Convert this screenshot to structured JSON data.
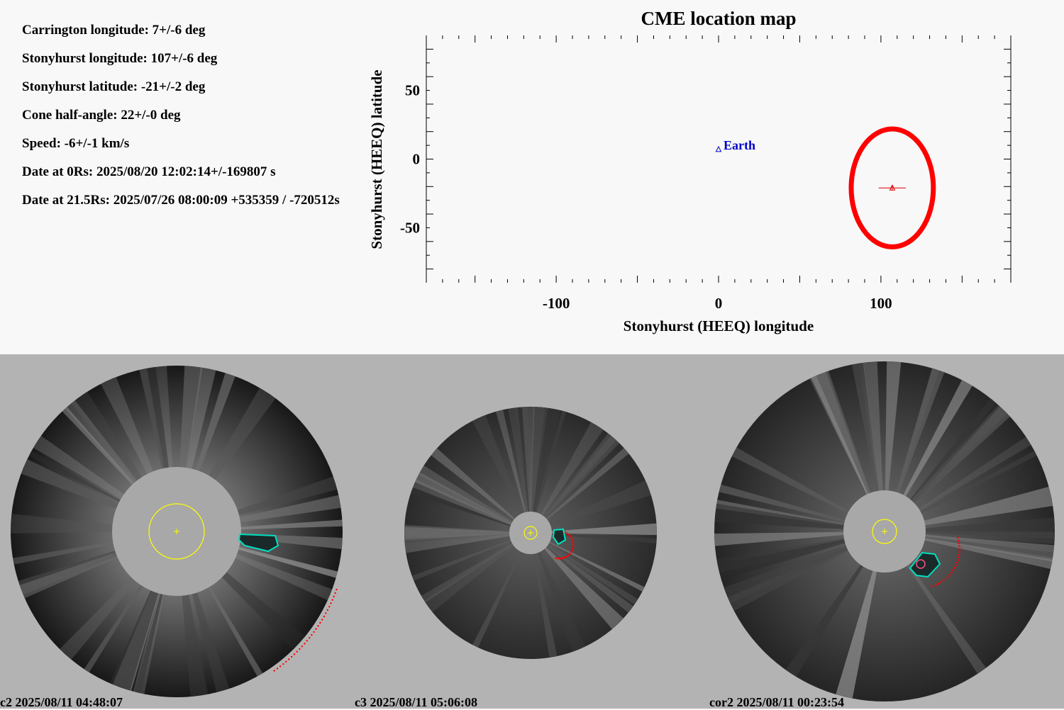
{
  "info": [
    "Carrington longitude: 7+/-6 deg",
    "Stonyhurst longitude: 107+/-6 deg",
    "Stonyhurst latitude: -21+/-2 deg",
    "Cone half-angle: 22+/-0 deg",
    "Speed: -6+/-1 km/s",
    "Date at 0Rs: 2025/08/20 12:02:14+/-169807 s",
    "Date at 21.5Rs: 2025/07/26 08:00:09 +535359 / -720512s"
  ],
  "chart_data": {
    "type": "scatter",
    "title": "CME location map",
    "xlabel": "Stonyhurst (HEEQ) longitude",
    "ylabel": "Stonyhurst (HEEQ) latitude",
    "xlim": [
      -180,
      180
    ],
    "ylim": [
      -90,
      90
    ],
    "xticks": [
      -100,
      0,
      100
    ],
    "yticks": [
      50,
      0,
      -50
    ],
    "points": [
      {
        "label": "Earth",
        "x": 0,
        "y": 7,
        "color": "#0000cc",
        "marker": "triangle"
      },
      {
        "label": "",
        "x": 107,
        "y": -21,
        "xerr": 6,
        "yerr": 2,
        "color": "#dd0000",
        "marker": "triangle"
      }
    ],
    "cone": {
      "center_lon": 107,
      "center_lat": -21,
      "half_angle": 22,
      "color": "#ff0000"
    },
    "grid": false
  },
  "panels": [
    {
      "caption": "c2 2025/08/11 04:48:07"
    },
    {
      "caption": "c3 2025/08/11 05:06:08"
    },
    {
      "caption": "cor2 2025/08/11 00:23:54"
    }
  ],
  "colors": {
    "background": "#f8f8f8",
    "panel_bg": "#b3b3b3",
    "occulter": "#a8a8a8",
    "sun": "#ffff00",
    "cme_fit": "#ff0000",
    "feature": "#00e0c0"
  }
}
